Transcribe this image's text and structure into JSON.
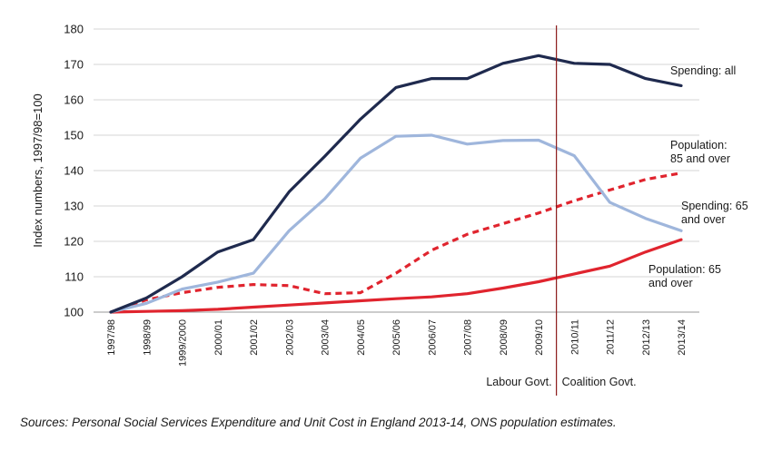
{
  "chart_data": {
    "type": "line",
    "title": "",
    "ylabel": "Index numbers, 1997/98=100",
    "xlabel": "",
    "ylim": [
      100,
      180
    ],
    "yticks": [
      100,
      110,
      120,
      130,
      140,
      150,
      160,
      170,
      180
    ],
    "grid": true,
    "categories": [
      "1997/98",
      "1998/99",
      "1999/2000",
      "2000/01",
      "2001/02",
      "2002/03",
      "2003/04",
      "2004/05",
      "2005/06",
      "2006/07",
      "2007/08",
      "2008/09",
      "2009/10",
      "2010/11",
      "2011/12",
      "2012/13",
      "2013/14"
    ],
    "series": [
      {
        "name": "Spending: all",
        "name_lines": [
          "Spending: all"
        ],
        "color": "#1f2a4e",
        "dash": false,
        "values": [
          100,
          104,
          110,
          117,
          120.5,
          134,
          144,
          154.5,
          163.5,
          166,
          166,
          170.3,
          172.5,
          170.3,
          170,
          166,
          164
        ]
      },
      {
        "name": "Spending: 65 and over",
        "name_lines": [
          "Spending: 65",
          "and over"
        ],
        "color": "#9fb6dc",
        "dash": false,
        "values": [
          100,
          102.5,
          106.5,
          108.5,
          111,
          123,
          132,
          143.5,
          149.7,
          150,
          147.5,
          148.5,
          148.6,
          144.2,
          131,
          126.5,
          123
        ]
      },
      {
        "name": "Population: 85 and over",
        "name_lines": [
          "Population:",
          "85 and over"
        ],
        "color": "#e0242e",
        "dash": true,
        "values": [
          100,
          103.5,
          105.5,
          107,
          107.8,
          107.5,
          105.2,
          105.5,
          111,
          117.5,
          122,
          125,
          128,
          131.5,
          134.5,
          137.5,
          139.3
        ]
      },
      {
        "name": "Population: 65 and over",
        "name_lines": [
          "Population: 65",
          "and over"
        ],
        "color": "#e0242e",
        "dash": false,
        "values": [
          100,
          100.2,
          100.4,
          100.8,
          101.4,
          102,
          102.6,
          103.2,
          103.8,
          104.3,
          105.2,
          106.8,
          108.6,
          110.8,
          113,
          117,
          120.5
        ]
      }
    ],
    "divider": {
      "after_category": "2009/10",
      "left_label": "Labour Govt.",
      "right_label": "Coalition Govt.",
      "color": "#8b1a1a"
    }
  },
  "source_note": "Sources: Personal Social Services Expenditure and Unit Cost in England 2013-14, ONS population estimates."
}
